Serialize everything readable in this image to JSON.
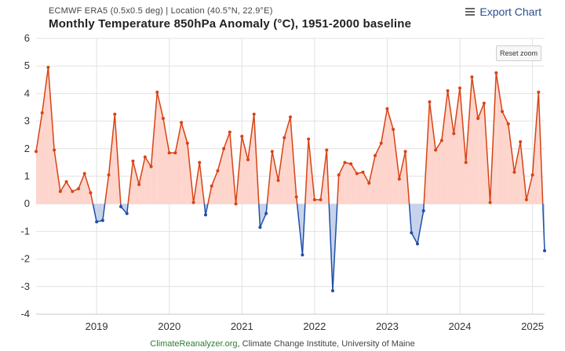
{
  "header": {
    "subtitle": "ECMWF ERA5 (0.5x0.5 deg) | Location (40.5°N, 22.9°E)",
    "title": "Monthly Temperature 850hPa Anomaly (°C), 1951-2000 baseline",
    "export_label": "Export Chart",
    "reset_zoom_label": "Reset zoom"
  },
  "footer": {
    "site": "ClimateReanalyzer.org",
    "rest": ", Climate Change Institute, University of Maine"
  },
  "colors": {
    "positive_line": "#d84315",
    "positive_fill": "#fdd5cc",
    "negative_line": "#1e4fa8",
    "negative_fill": "#c7d3ec",
    "grid": "#e2e2e2"
  },
  "icons": [
    "menu-icon"
  ],
  "chart_data": {
    "type": "area",
    "title": "Monthly Temperature 850hPa Anomaly (°C), 1951-2000 baseline",
    "ylim": [
      -4,
      6
    ],
    "yticks": [
      -4,
      -3,
      -2,
      -1,
      0,
      1,
      2,
      3,
      4,
      5,
      6
    ],
    "xlim": [
      "2018-03",
      "2025-03"
    ],
    "xticks": [
      "2019",
      "2020",
      "2021",
      "2022",
      "2023",
      "2024",
      "2025"
    ],
    "x_start": "2018-03",
    "grid": true,
    "series": [
      {
        "values": [
          1.9,
          3.3,
          4.95,
          1.95,
          0.45,
          0.8,
          0.45,
          0.55,
          1.1,
          0.4,
          -0.65,
          -0.6,
          1.05,
          3.25,
          -0.1,
          -0.35,
          1.55,
          0.7,
          1.7,
          1.35,
          4.05,
          3.1,
          1.85,
          1.85,
          2.95,
          2.2,
          0.05,
          1.5,
          -0.4,
          0.65,
          1.2,
          2.0,
          2.6,
          0.0,
          2.45,
          1.6,
          3.25,
          -0.85,
          -0.35,
          1.9,
          0.85,
          2.4,
          3.15,
          0.25,
          -1.85,
          2.35,
          0.15,
          0.15,
          1.95,
          -3.15,
          1.05,
          1.5,
          1.45,
          1.1,
          1.15,
          0.75,
          1.75,
          2.2,
          3.45,
          2.7,
          0.9,
          1.9,
          -1.05,
          -1.45,
          -0.25,
          3.7,
          1.95,
          2.3,
          4.1,
          2.55,
          4.2,
          1.5,
          4.6,
          3.1,
          3.65,
          0.05,
          4.75,
          3.35,
          2.9,
          1.15,
          2.25,
          0.15,
          1.05,
          4.05,
          -1.7
        ]
      }
    ]
  }
}
